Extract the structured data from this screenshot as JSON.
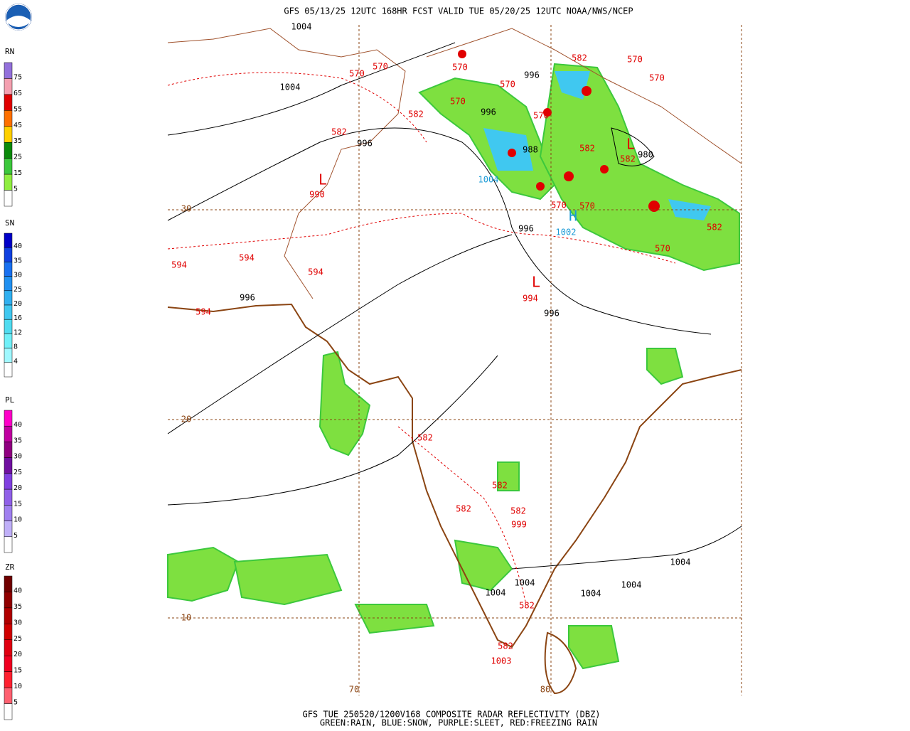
{
  "header": {
    "title": "GFS 05/13/25 12UTC 168HR FCST VALID TUE 05/20/25 12UTC NOAA/NWS/NCEP"
  },
  "footer": {
    "line1": "GFS TUE 250520/1200V168 COMPOSITE RADAR REFLECTIVITY (DBZ)",
    "line2": "GREEN:RAIN, BLUE:SNOW, PURPLE:SLEET, RED:FREEZING RAIN"
  },
  "legends": [
    {
      "label": "RN",
      "ticks": [
        75,
        65,
        55,
        45,
        35,
        25,
        15,
        5
      ],
      "colors": [
        "#9370db",
        "#f4a0b0",
        "#e00000",
        "#ff7000",
        "#ffd000",
        "#0a8a0a",
        "#3cc83c",
        "#90ee40"
      ]
    },
    {
      "label": "SN",
      "ticks": [
        40,
        35,
        30,
        25,
        20,
        16,
        12,
        8,
        4
      ],
      "colors": [
        "#0000c8",
        "#1040e0",
        "#1870f0",
        "#2090f0",
        "#30b0f0",
        "#40c8f0",
        "#50dcf0",
        "#70f0f8",
        "#a0f8ff"
      ]
    },
    {
      "label": "PL",
      "ticks": [
        40,
        35,
        30,
        25,
        20,
        15,
        10,
        5
      ],
      "colors": [
        "#ff00c8",
        "#c000a0",
        "#900080",
        "#7010a0",
        "#8040e0",
        "#9060e8",
        "#a080f0",
        "#c0b0f8"
      ]
    },
    {
      "label": "ZR",
      "ticks": [
        40,
        35,
        30,
        25,
        20,
        15,
        10,
        5
      ],
      "colors": [
        "#700000",
        "#900000",
        "#b00000",
        "#d00000",
        "#e00010",
        "#f00020",
        "#ff2030",
        "#ff6070"
      ]
    }
  ],
  "map": {
    "labels": [
      "1004",
      "1004",
      "996",
      "996",
      "996",
      "988",
      "980",
      "996",
      "996",
      "996",
      "1004",
      "1004",
      "1004",
      "1004",
      "1004",
      "570",
      "570",
      "570",
      "570",
      "570",
      "582",
      "582",
      "582",
      "570",
      "570",
      "570",
      "582",
      "582",
      "570",
      "570",
      "582",
      "570",
      "594",
      "594",
      "594",
      "594",
      "582",
      "582",
      "582",
      "582",
      "582",
      "582",
      "L",
      "990",
      "L",
      "994",
      "L",
      "999",
      "1003",
      "1004",
      "1002",
      "H",
      "30",
      "20",
      "10",
      "70",
      "80"
    ],
    "label_colors": [
      "black",
      "black",
      "black",
      "black",
      "black",
      "black",
      "black",
      "black",
      "black",
      "black",
      "black",
      "black",
      "black",
      "black",
      "black",
      "red",
      "red",
      "red",
      "red",
      "red",
      "red",
      "red",
      "red",
      "red",
      "red",
      "red",
      "red",
      "red",
      "red",
      "red",
      "red",
      "red",
      "red",
      "red",
      "red",
      "red",
      "red",
      "red",
      "red",
      "red",
      "red",
      "red",
      "red",
      "red",
      "red",
      "red",
      "red",
      "red",
      "red",
      "blue",
      "blue",
      "blue",
      "brown",
      "brown",
      "brown",
      "brown",
      "brown"
    ]
  }
}
